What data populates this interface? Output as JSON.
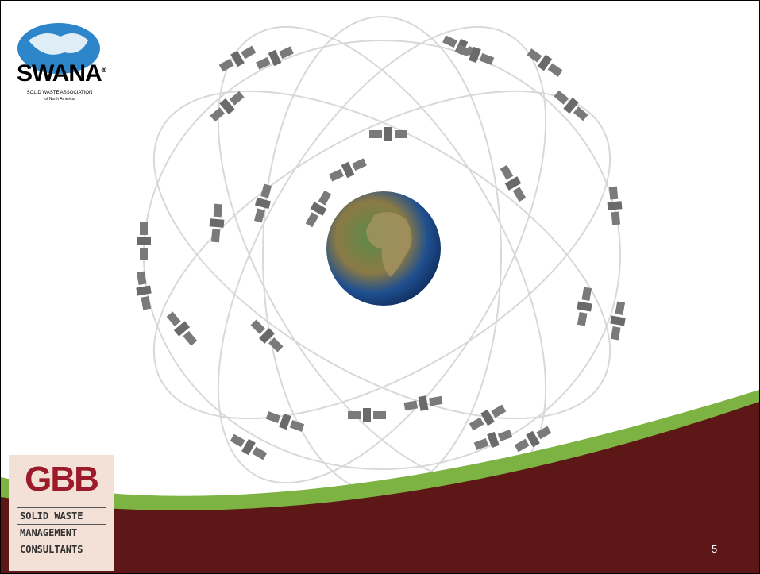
{
  "logo_top": {
    "name": "SWANA",
    "registered_mark": "®",
    "line1": "SOLID WASTE ASSOCIATION",
    "line2": "of North America"
  },
  "logo_bottom": {
    "name": "GBB",
    "lines": [
      "SOLID WASTE",
      "MANAGEMENT",
      "CONSULTANTS"
    ]
  },
  "slide_number": "5"
}
